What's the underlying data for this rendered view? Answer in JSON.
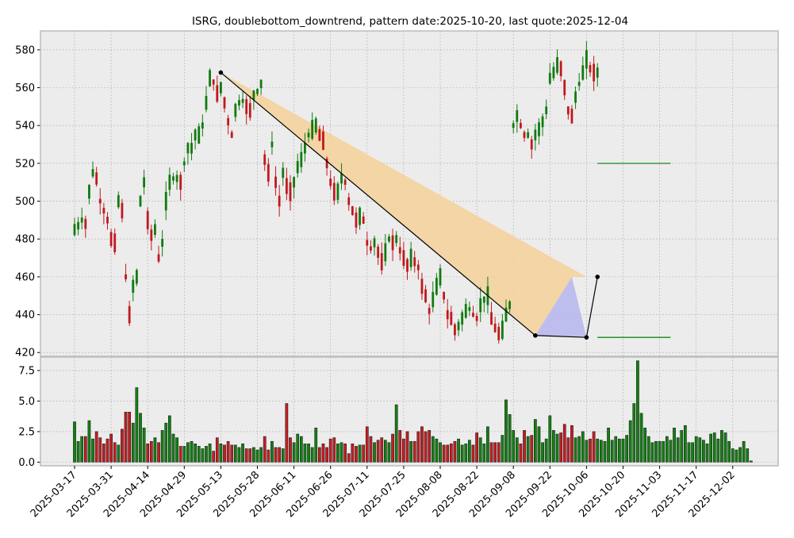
{
  "chart_data": [
    {
      "type": "candlestick",
      "title": "ISRG, doublebottom_downtrend, pattern date:2025-10-20, last quote:2025-12-04",
      "ylim": [
        418,
        590
      ],
      "y_ticks": [
        420,
        440,
        460,
        480,
        500,
        520,
        540,
        560,
        580
      ],
      "x_ticks": [
        "2025-03-17",
        "2025-03-31",
        "2025-04-14",
        "2025-04-29",
        "2025-05-13",
        "2025-05-28",
        "2025-06-11",
        "2025-06-26",
        "2025-07-11",
        "2025-07-25",
        "2025-08-08",
        "2025-08-22",
        "2025-09-08",
        "2025-09-22",
        "2025-10-06",
        "2025-10-20",
        "2025-11-03",
        "2025-11-17",
        "2025-12-02"
      ],
      "grid": true,
      "candle_midpoints": [
        485,
        487,
        490,
        488,
        505,
        515,
        512,
        500,
        495,
        490,
        480,
        478,
        500,
        495,
        460,
        440,
        455,
        460,
        500,
        510,
        490,
        482,
        485,
        470,
        478,
        500,
        510,
        512,
        512,
        510,
        520,
        528,
        528,
        535,
        535,
        540,
        552,
        565,
        563,
        557,
        560,
        552,
        542,
        535,
        548,
        552,
        553,
        550,
        548,
        556,
        558,
        562,
        522,
        515,
        530,
        510,
        500,
        515,
        508,
        505,
        510,
        518,
        522,
        528,
        535,
        538,
        540,
        535,
        532,
        520,
        510,
        505,
        505,
        512,
        510,
        500,
        495,
        490,
        492,
        490,
        478,
        475,
        478,
        473,
        468,
        473,
        480,
        478,
        480,
        474,
        470,
        466,
        470,
        468,
        465,
        455,
        450,
        442,
        448,
        455,
        460,
        450,
        440,
        438,
        432,
        434,
        438,
        442,
        443,
        440,
        438,
        445,
        448,
        450,
        438,
        433,
        430,
        432,
        440,
        445,
        540,
        545,
        540,
        535,
        535,
        530,
        535,
        538,
        542,
        548,
        565,
        568,
        572,
        570,
        560,
        548,
        545,
        555,
        562,
        568,
        575,
        570,
        568,
        568
      ],
      "annotations": {
        "pattern_line": [
          {
            "i": 40,
            "price": 568
          },
          {
            "i": 126,
            "price": 429
          },
          {
            "i": 140,
            "price": 428
          },
          {
            "i": 143,
            "price": 460
          }
        ],
        "upper_band": [
          {
            "i": 40,
            "price": 568
          },
          {
            "i": 140,
            "price": 460
          }
        ],
        "lower_band": [
          {
            "i": 126,
            "price": 429
          },
          {
            "i": 136,
            "price": 460
          },
          {
            "i": 140,
            "price": 428
          }
        ],
        "target_upper": 520,
        "target_lower": 428
      }
    },
    {
      "type": "bar",
      "title": "",
      "ylim": [
        -0.3,
        8.6
      ],
      "y_ticks": [
        "0.0",
        "2.5",
        "5.0",
        "7.5"
      ],
      "values": [
        3.3,
        1.7,
        2.1,
        2.1,
        3.4,
        1.9,
        2.5,
        2.0,
        1.5,
        1.9,
        2.3,
        1.6,
        1.4,
        2.7,
        4.1,
        4.1,
        3.2,
        6.1,
        4.0,
        2.8,
        1.5,
        1.7,
        2.0,
        1.6,
        2.6,
        3.2,
        3.8,
        2.3,
        2.0,
        1.3,
        1.3,
        1.6,
        1.7,
        1.5,
        1.3,
        1.1,
        1.3,
        1.5,
        0.9,
        2.0,
        1.5,
        1.4,
        1.7,
        1.4,
        1.4,
        1.2,
        1.5,
        1.1,
        1.1,
        1.2,
        1.0,
        1.2,
        2.1,
        1.0,
        1.7,
        1.2,
        1.2,
        1.1,
        4.8,
        2.0,
        1.6,
        2.3,
        2.1,
        1.5,
        1.5,
        1.2,
        2.8,
        1.2,
        1.5,
        1.2,
        1.9,
        2.0,
        1.5,
        1.6,
        1.5,
        0.7,
        1.5,
        1.3,
        1.4,
        1.4,
        2.9,
        2.1,
        1.6,
        1.8,
        2.0,
        1.8,
        1.6,
        2.3,
        4.7,
        2.6,
        1.9,
        2.5,
        1.7,
        1.7,
        2.5,
        2.9,
        2.5,
        2.6,
        2.1,
        1.9,
        1.6,
        1.4,
        1.4,
        1.5,
        1.7,
        1.9,
        1.4,
        1.5,
        1.8,
        1.4,
        2.4,
        2.0,
        1.5,
        2.9,
        1.6,
        1.6,
        1.6,
        2.2,
        5.1,
        3.9,
        2.6,
        2.0,
        1.5,
        2.6,
        2.1,
        2.2,
        3.5,
        2.9,
        1.6,
        1.9,
        3.8,
        2.6,
        2.3,
        2.4,
        3.1,
        2.0,
        3.0,
        2.0,
        2.1,
        2.5,
        1.8,
        1.9,
        2.5,
        1.9,
        1.8,
        1.7,
        2.8,
        1.8,
        2.1,
        1.9,
        1.9,
        2.2,
        3.4,
        4.8,
        8.3,
        4.0,
        2.8,
        2.1,
        1.6,
        1.7,
        1.7,
        1.7,
        2.1,
        1.8,
        2.8,
        2.0,
        2.6,
        3.0,
        1.6,
        1.6,
        2.1,
        2.0,
        1.8,
        1.5,
        2.3,
        2.4,
        1.9,
        2.6,
        2.4,
        1.7,
        1.1,
        1.0,
        1.2,
        1.7,
        1.1,
        0.1
      ]
    }
  ],
  "colors": {
    "up": "#107a10",
    "down": "#c0181e",
    "pattern_fill_upper": "#f5d39f",
    "pattern_fill_lower": "#b6b6ee",
    "target_line": "#138a13",
    "axes_bg": "#ececec",
    "grid": "#b0b0b0"
  }
}
